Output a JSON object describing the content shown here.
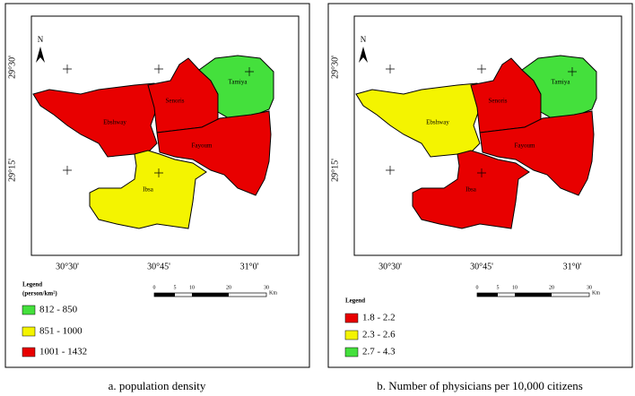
{
  "panels": [
    {
      "north": "N",
      "latitude_labels": [
        "29°30'",
        "29°15'"
      ],
      "longitude_labels": [
        "30°30'",
        "30°45'",
        "31°0'"
      ],
      "regions": [
        {
          "name": "Ebshway",
          "color": "#e80000"
        },
        {
          "name": "Senoris",
          "color": "#e80000"
        },
        {
          "name": "Tamiya",
          "color": "#44e03c"
        },
        {
          "name": "Fayoum",
          "color": "#e80000"
        },
        {
          "name": "Ibsa",
          "color": "#f4f400"
        }
      ],
      "legend": {
        "title": "Legend",
        "subtitle": "(person/km²)",
        "items": [
          {
            "label": "812 - 850",
            "color": "#44e03c"
          },
          {
            "label": "851 - 1000",
            "color": "#f4f400"
          },
          {
            "label": "1001 - 1432",
            "color": "#e80000"
          }
        ]
      },
      "scale": {
        "ticks": [
          "0",
          "5",
          "10",
          "20",
          "30"
        ],
        "unit": "Km"
      },
      "caption": "a. population density"
    },
    {
      "north": "N",
      "latitude_labels": [
        "29°30'",
        "29°15'"
      ],
      "longitude_labels": [
        "30°30'",
        "30°45'",
        "31°0'"
      ],
      "regions": [
        {
          "name": "Ebshway",
          "color": "#f4f400"
        },
        {
          "name": "Senoris",
          "color": "#e80000"
        },
        {
          "name": "Tamiya",
          "color": "#44e03c"
        },
        {
          "name": "Fayoum",
          "color": "#e80000"
        },
        {
          "name": "Ibsa",
          "color": "#e80000"
        }
      ],
      "legend": {
        "title": "Legend",
        "items": [
          {
            "label": "1.8 - 2.2",
            "color": "#e80000"
          },
          {
            "label": "2.3 - 2.6",
            "color": "#f4f400"
          },
          {
            "label": "2.7 - 4.3",
            "color": "#44e03c"
          }
        ]
      },
      "scale": {
        "ticks": [
          "0",
          "5",
          "10",
          "20",
          "30"
        ],
        "unit": "Km"
      },
      "caption": "b. Number of physicians per 10,000 citizens"
    }
  ]
}
